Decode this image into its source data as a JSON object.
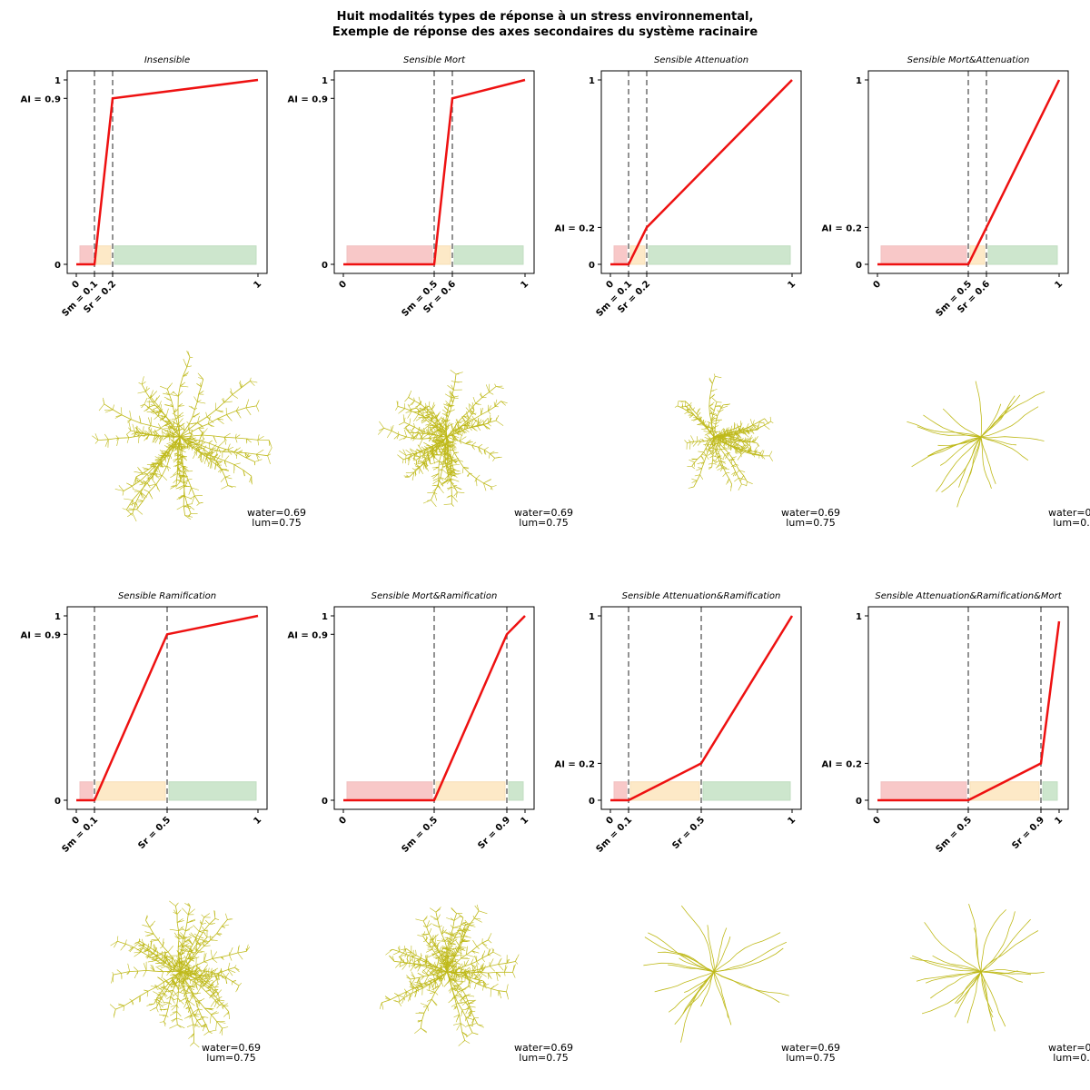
{
  "title_line1": "Huit modalités types de réponse à un stress environnemental,",
  "title_line2": "Exemple de réponse des axes secondaires du système racinaire",
  "colors": {
    "curve": "#ee1111",
    "vline": "#777777",
    "zone_mort": "#f4a5a5",
    "zone_attenuation": "#fde0b0",
    "zone_ramification": "#a6d3a6",
    "root": "#b8b200"
  },
  "annotations": {
    "water": "water=0.69",
    "lum": "lum=0.75"
  },
  "chart_data": [
    {
      "type": "line",
      "title": "Sensible",
      "title_full": "Insensible",
      "x": [
        0,
        0.1,
        0.2,
        1
      ],
      "y": [
        0,
        0,
        0.9,
        1
      ],
      "xticks": [
        "0",
        "Sm = 0.1",
        "Sr = 0.2",
        "1"
      ],
      "xtick_values": [
        0,
        0.1,
        0.2,
        1
      ],
      "yticks": [
        "0",
        "AI = 0.9",
        "1"
      ],
      "ytick_values": [
        0,
        0.9,
        1
      ],
      "sm": 0.1,
      "sr": 0.2,
      "xlim": [
        0,
        1
      ],
      "ylim": [
        0,
        1
      ]
    },
    {
      "type": "line",
      "title_full": "Sensible Mort",
      "x": [
        0,
        0.5,
        0.6,
        1
      ],
      "y": [
        0,
        0,
        0.9,
        1
      ],
      "xticks": [
        "0",
        "Sm = 0.5",
        "Sr = 0.6",
        "1"
      ],
      "xtick_values": [
        0,
        0.5,
        0.6,
        1
      ],
      "yticks": [
        "0",
        "AI = 0.9",
        "1"
      ],
      "ytick_values": [
        0,
        0.9,
        1
      ],
      "sm": 0.5,
      "sr": 0.6,
      "xlim": [
        0,
        1
      ],
      "ylim": [
        0,
        1
      ]
    },
    {
      "type": "line",
      "title_full": "Sensible Attenuation",
      "x": [
        0,
        0.1,
        0.2,
        1
      ],
      "y": [
        0,
        0,
        0.2,
        1
      ],
      "xticks": [
        "0",
        "Sm = 0.1",
        "Sr = 0.2",
        "1"
      ],
      "xtick_values": [
        0,
        0.1,
        0.2,
        1
      ],
      "yticks": [
        "0",
        "AI = 0.2",
        "1"
      ],
      "ytick_values": [
        0,
        0.2,
        1
      ],
      "sm": 0.1,
      "sr": 0.2,
      "xlim": [
        0,
        1
      ],
      "ylim": [
        0,
        1
      ]
    },
    {
      "type": "line",
      "title_full": "Sensible Mort&Attenuation",
      "x": [
        0,
        0.5,
        0.6,
        1
      ],
      "y": [
        0,
        0,
        0.2,
        1
      ],
      "xticks": [
        "0",
        "Sm = 0.5",
        "Sr = 0.6",
        "1"
      ],
      "xtick_values": [
        0,
        0.5,
        0.6,
        1
      ],
      "yticks": [
        "0",
        "AI = 0.2",
        "1"
      ],
      "ytick_values": [
        0,
        0.2,
        1
      ],
      "sm": 0.5,
      "sr": 0.6,
      "xlim": [
        0,
        1
      ],
      "ylim": [
        0,
        1
      ]
    },
    {
      "type": "line",
      "title_full": "Sensible Ramification",
      "x": [
        0,
        0.1,
        0.5,
        1
      ],
      "y": [
        0,
        0,
        0.9,
        1
      ],
      "xticks": [
        "0",
        "Sm = 0.1",
        "Sr = 0.5",
        "1"
      ],
      "xtick_values": [
        0,
        0.1,
        0.5,
        1
      ],
      "yticks": [
        "0",
        "AI = 0.9",
        "1"
      ],
      "ytick_values": [
        0,
        0.9,
        1
      ],
      "sm": 0.1,
      "sr": 0.5,
      "xlim": [
        0,
        1
      ],
      "ylim": [
        0,
        1
      ]
    },
    {
      "type": "line",
      "title_full": "Sensible Mort&Ramification",
      "x": [
        0,
        0.5,
        0.9,
        1
      ],
      "y": [
        0,
        0,
        0.9,
        1
      ],
      "xticks": [
        "0",
        "Sm = 0.5",
        "Sr = 0.9",
        "1"
      ],
      "xtick_values": [
        0,
        0.5,
        0.9,
        1
      ],
      "yticks": [
        "0",
        "AI = 0.9",
        "1"
      ],
      "ytick_values": [
        0,
        0.9,
        1
      ],
      "sm": 0.5,
      "sr": 0.9,
      "xlim": [
        0,
        1
      ],
      "ylim": [
        0,
        1
      ]
    },
    {
      "type": "line",
      "title_full": "Sensible Attenuation&Ramification",
      "x": [
        0,
        0.1,
        0.5,
        1
      ],
      "y": [
        0,
        0,
        0.2,
        1
      ],
      "xticks": [
        "0",
        "Sm = 0.1",
        "Sr = 0.5",
        "1"
      ],
      "xtick_values": [
        0,
        0.1,
        0.5,
        1
      ],
      "yticks": [
        "0",
        "AI = 0.2",
        "1"
      ],
      "ytick_values": [
        0,
        0.2,
        1
      ],
      "sm": 0.1,
      "sr": 0.5,
      "xlim": [
        0,
        1
      ],
      "ylim": [
        0,
        1
      ]
    },
    {
      "type": "line",
      "title_full": "Sensible Attenuation&Ramification&Mort",
      "x": [
        0,
        0.5,
        0.9,
        1
      ],
      "y": [
        0,
        0,
        0.2,
        0.97
      ],
      "xticks": [
        "0",
        "Sm = 0.5",
        "Sr = 0.9",
        "1"
      ],
      "xtick_values": [
        0,
        0.5,
        0.9,
        1
      ],
      "yticks": [
        "0",
        "AI = 0.2",
        "1"
      ],
      "ytick_values": [
        0,
        0.2,
        1
      ],
      "sm": 0.5,
      "sr": 0.9,
      "xlim": [
        0,
        1
      ],
      "ylim": [
        0,
        1
      ]
    }
  ]
}
